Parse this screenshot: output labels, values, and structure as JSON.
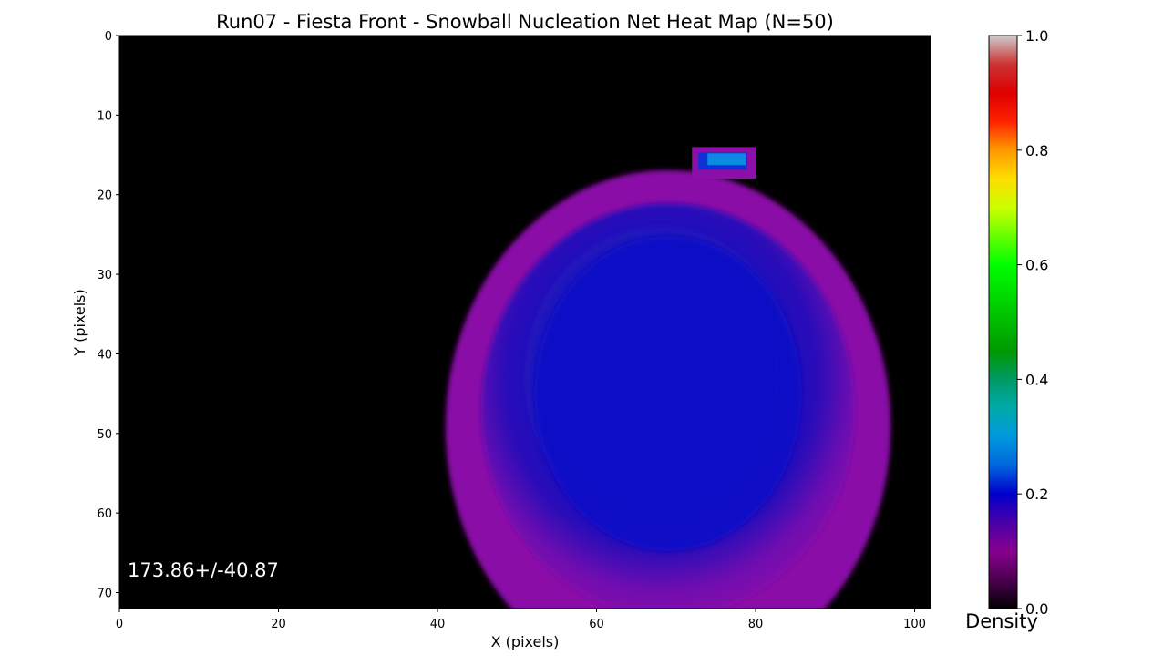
{
  "chart_data": {
    "type": "heatmap",
    "title": "Run07 - Fiesta Front - Snowball Nucleation Net Heat Map (N=50)",
    "xlabel": "X (pixels)",
    "ylabel": "Y (pixels)",
    "xlim": [
      0,
      102
    ],
    "ylim": [
      72,
      0
    ],
    "x_ticks": [
      "0",
      "20",
      "40",
      "60",
      "80",
      "100"
    ],
    "y_ticks": [
      "0",
      "10",
      "20",
      "30",
      "40",
      "50",
      "60",
      "70"
    ],
    "annotation": "173.86+/-40.87",
    "colorbar": {
      "label": "Density",
      "range": [
        0.0,
        1.0
      ],
      "ticks": [
        "0.0",
        "0.2",
        "0.4",
        "0.6",
        "0.8",
        "1.0"
      ],
      "colormap": "nipy_spectral-like (black → purple → blue → cyan → green → yellow → red → grey)"
    },
    "regions": [
      {
        "name": "main-blob",
        "center_x": 69,
        "center_y": 45,
        "extent_x": [
          42,
          98
        ],
        "extent_y": [
          20,
          72
        ],
        "core_density": 0.15,
        "rim_density": 0.08
      },
      {
        "name": "small-hotspot",
        "center_x": 76,
        "center_y": 15.8,
        "extent_x": [
          72,
          80
        ],
        "extent_y": [
          14,
          18
        ],
        "peak_density": 0.3
      }
    ],
    "grid": false
  }
}
